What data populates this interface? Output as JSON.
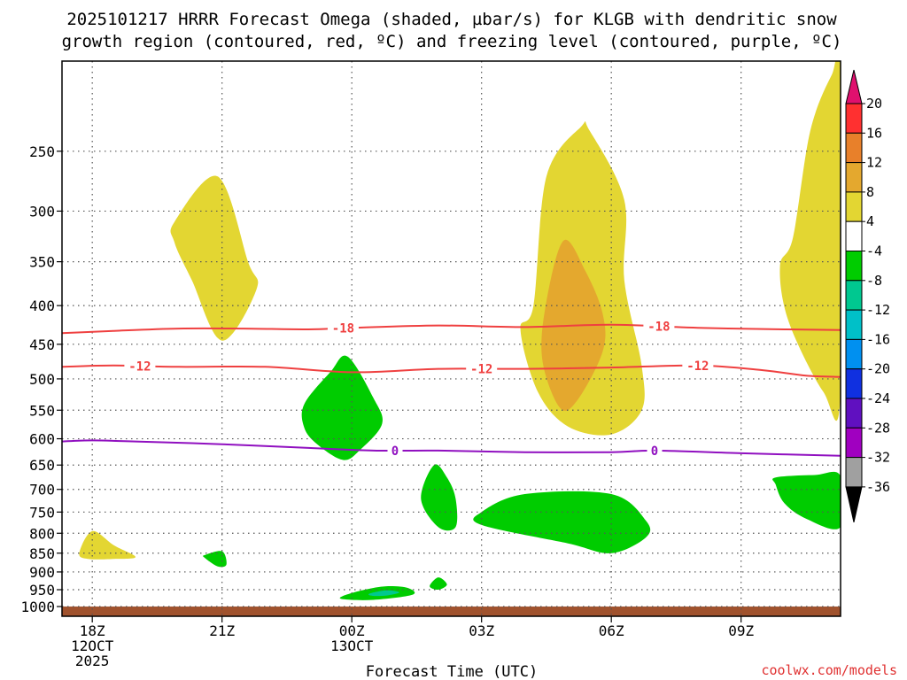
{
  "chart_data": {
    "type": "heatmap",
    "title_lines": [
      "2025101217 HRRR Forecast Omega (shaded, µbar/s) for KLGB with dendritic snow",
      "growth region (contoured, red, ºC) and freezing level (contoured, purple, ºC)"
    ],
    "xlabel": "Forecast Time (UTC)",
    "credit": "coolwx.com/models",
    "x_ticks": [
      {
        "hour": 0,
        "lines": [
          "18Z",
          "12OCT",
          "2025"
        ]
      },
      {
        "hour": 3,
        "lines": [
          "21Z"
        ]
      },
      {
        "hour": 6,
        "lines": [
          "00Z",
          "13OCT"
        ]
      },
      {
        "hour": 9,
        "lines": [
          "03Z"
        ]
      },
      {
        "hour": 12,
        "lines": [
          "06Z"
        ]
      },
      {
        "hour": 15,
        "lines": [
          "09Z"
        ]
      }
    ],
    "xlim": [
      -0.7,
      17.3
    ],
    "ylim_hPa": [
      190,
      1030
    ],
    "y_scale": "log",
    "y_ticks": [
      250,
      300,
      350,
      400,
      450,
      500,
      550,
      600,
      650,
      700,
      750,
      800,
      850,
      900,
      950,
      1000
    ],
    "grid": true,
    "ground_pressure_hPa": 1000,
    "ground_color": "#a0522d",
    "colorbar": {
      "labels": [
        20,
        16,
        12,
        8,
        4,
        -4,
        -8,
        -12,
        -16,
        -20,
        -24,
        -28,
        -32,
        -36
      ],
      "colors": [
        "#ff3030",
        "#e8802a",
        "#e4a82e",
        "#e3d632",
        "#ffffff",
        "#00cc00",
        "#00c890",
        "#00c0c8",
        "#0090f0",
        "#1030e0",
        "#6010c0",
        "#a000c0",
        "#a0a0a0"
      ],
      "over_color": "#e0106e",
      "under_color": "#000000"
    },
    "omega_regions": [
      {
        "level": "4 to 8",
        "color": "#e3d632",
        "points": [
          [
            1.9,
            310
          ],
          [
            2.9,
            270
          ],
          [
            3.6,
            350
          ],
          [
            3.8,
            380
          ],
          [
            3.0,
            445
          ],
          [
            2.3,
            370
          ],
          [
            1.9,
            330
          ]
        ]
      },
      {
        "level": "4 to 8",
        "color": "#e3d632",
        "points": [
          [
            10.2,
            400
          ],
          [
            10.5,
            270
          ],
          [
            11.3,
            232
          ],
          [
            11.5,
            235
          ],
          [
            12.3,
            290
          ],
          [
            12.3,
            370
          ],
          [
            12.7,
            480
          ],
          [
            12.7,
            550
          ],
          [
            12.0,
            592
          ],
          [
            11.0,
            578
          ],
          [
            10.3,
            520
          ],
          [
            9.9,
            430
          ]
        ]
      },
      {
        "level": "4 to 8",
        "color": "#e3d632",
        "points": [
          [
            16.2,
            325
          ],
          [
            16.6,
            235
          ],
          [
            17.1,
            198
          ],
          [
            17.3,
            195
          ],
          [
            17.3,
            525
          ],
          [
            16.9,
            520
          ],
          [
            16.1,
            420
          ],
          [
            15.9,
            355
          ]
        ]
      },
      {
        "level": "4 to 8",
        "color": "#e3d632",
        "points": [
          [
            -0.3,
            850
          ],
          [
            0.0,
            795
          ],
          [
            0.5,
            830
          ],
          [
            1.0,
            860
          ],
          [
            0.5,
            865
          ],
          [
            -0.1,
            865
          ]
        ]
      },
      {
        "level": "8 to 12",
        "color": "#e4a82e",
        "points": [
          [
            10.5,
            395
          ],
          [
            10.9,
            328
          ],
          [
            11.4,
            360
          ],
          [
            11.8,
            410
          ],
          [
            11.8,
            460
          ],
          [
            11.2,
            535
          ],
          [
            10.8,
            545
          ],
          [
            10.4,
            470
          ]
        ]
      },
      {
        "level": "-8 to -4",
        "color": "#00cc00",
        "points": [
          [
            4.9,
            540
          ],
          [
            5.5,
            490
          ],
          [
            5.9,
            467
          ],
          [
            6.5,
            530
          ],
          [
            6.7,
            573
          ],
          [
            6.2,
            620
          ],
          [
            5.8,
            640
          ],
          [
            5.2,
            610
          ],
          [
            4.9,
            580
          ]
        ]
      },
      {
        "level": "-8 to -4",
        "color": "#00cc00",
        "points": [
          [
            7.6,
            720
          ],
          [
            7.9,
            650
          ],
          [
            8.2,
            675
          ],
          [
            8.4,
            720
          ],
          [
            8.4,
            785
          ],
          [
            8.0,
            785
          ]
        ]
      },
      {
        "level": "-8 to -4",
        "color": "#00cc00",
        "points": [
          [
            9.0,
            750
          ],
          [
            10.0,
            710
          ],
          [
            12.0,
            710
          ],
          [
            12.8,
            770
          ],
          [
            12.8,
            810
          ],
          [
            12.0,
            850
          ],
          [
            11.0,
            825
          ],
          [
            9.0,
            780
          ]
        ]
      },
      {
        "level": "-8 to -4",
        "color": "#00cc00",
        "points": [
          [
            15.8,
            675
          ],
          [
            16.7,
            670
          ],
          [
            17.3,
            672
          ],
          [
            17.3,
            785
          ],
          [
            16.5,
            765
          ],
          [
            16.0,
            730
          ],
          [
            15.8,
            690
          ]
        ]
      },
      {
        "level": "-8 to -4",
        "color": "#00cc00",
        "points": [
          [
            2.6,
            855
          ],
          [
            3.0,
            845
          ],
          [
            3.1,
            880
          ],
          [
            2.9,
            885
          ],
          [
            2.6,
            862
          ]
        ]
      },
      {
        "level": "-8 to -4",
        "color": "#00cc00",
        "points": [
          [
            7.8,
            940
          ],
          [
            8.0,
            915
          ],
          [
            8.2,
            935
          ],
          [
            8.0,
            950
          ]
        ]
      },
      {
        "level": "-8 to -4",
        "color": "#00cc00",
        "points": [
          [
            5.8,
            968
          ],
          [
            6.3,
            950
          ],
          [
            6.8,
            940
          ],
          [
            7.3,
            945
          ],
          [
            7.4,
            965
          ],
          [
            6.5,
            980
          ],
          [
            5.8,
            978
          ]
        ]
      },
      {
        "level": "-12 to -8",
        "color": "#00c890",
        "points": [
          [
            6.4,
            962
          ],
          [
            6.8,
            952
          ],
          [
            7.1,
            958
          ],
          [
            6.8,
            967
          ],
          [
            6.5,
            968
          ]
        ]
      }
    ],
    "contours": [
      {
        "label": "-18",
        "color": "#ef4040",
        "points": [
          [
            -0.7,
            435
          ],
          [
            0.5,
            432
          ],
          [
            2.0,
            429
          ],
          [
            3.5,
            429
          ],
          [
            5.0,
            430
          ],
          [
            6.0,
            428
          ],
          [
            8.0,
            425
          ],
          [
            10.0,
            427
          ],
          [
            12.0,
            424
          ],
          [
            14.0,
            428
          ],
          [
            16.0,
            430
          ],
          [
            17.3,
            431
          ]
        ],
        "label_at": [
          5.8,
          13.1
        ]
      },
      {
        "label": "-12",
        "color": "#ef4040",
        "points": [
          [
            -0.7,
            482
          ],
          [
            0.5,
            480
          ],
          [
            2.0,
            482
          ],
          [
            4.0,
            482
          ],
          [
            6.0,
            490
          ],
          [
            8.0,
            485
          ],
          [
            10.0,
            485
          ],
          [
            12.0,
            483
          ],
          [
            14.0,
            480
          ],
          [
            15.5,
            487
          ],
          [
            16.5,
            495
          ],
          [
            17.3,
            497
          ]
        ],
        "label_at": [
          1.1,
          9.0,
          14.0
        ]
      },
      {
        "label": "0",
        "color": "#9010c0",
        "points": [
          [
            -0.7,
            605
          ],
          [
            0.0,
            603
          ],
          [
            1.0,
            605
          ],
          [
            3.0,
            610
          ],
          [
            5.0,
            617
          ],
          [
            6.5,
            622
          ],
          [
            8.0,
            622
          ],
          [
            10.0,
            625
          ],
          [
            12.0,
            625
          ],
          [
            13.0,
            622
          ],
          [
            15.0,
            627
          ],
          [
            17.3,
            632
          ]
        ],
        "label_at": [
          7.0,
          13.0
        ]
      }
    ]
  }
}
